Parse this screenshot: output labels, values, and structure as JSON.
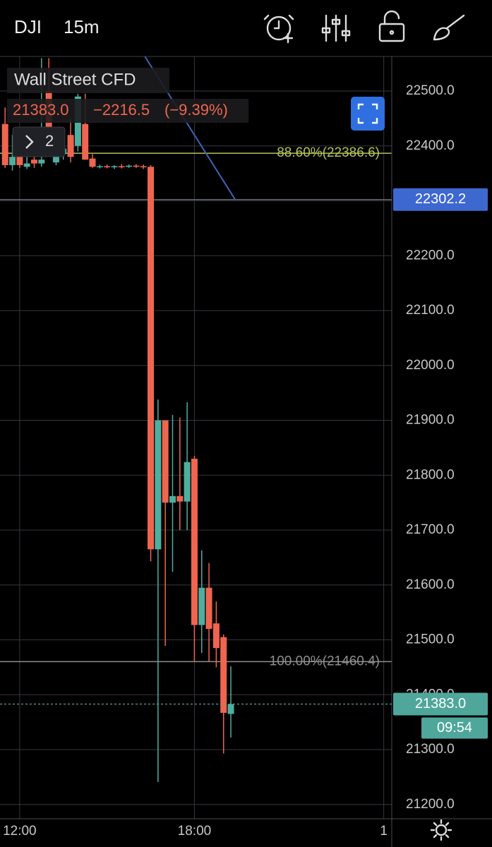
{
  "top_bar": {
    "symbol": "DJI",
    "interval": "15m"
  },
  "chart_data": {
    "type": "candlestick",
    "title": "Wall Street CFD",
    "legend": {
      "close": "21383.0",
      "change": "−2216.5",
      "change_percent": "(−9.39%)"
    },
    "indicators_button": "2",
    "x": [
      -2,
      -1,
      0,
      1,
      2,
      3,
      4,
      5,
      6,
      7,
      8,
      9,
      10,
      11,
      12,
      13,
      14,
      15,
      16,
      17,
      18,
      19,
      20,
      21,
      22,
      23,
      24,
      25,
      26,
      27,
      28,
      29
    ],
    "open": [
      22440,
      22365,
      22400,
      22362,
      22375,
      22368,
      22500,
      22370,
      22385,
      22420,
      22400,
      22440,
      22377,
      22362,
      22363,
      22362,
      22363,
      22362,
      22364,
      22363,
      22362,
      21665,
      21900,
      21750,
      21762,
      21752,
      21830,
      21527,
      21595,
      21530,
      21505,
      21365
    ],
    "high": [
      22470,
      22420,
      22430,
      22380,
      22390,
      22560,
      22560,
      22400,
      22420,
      22450,
      22495,
      22495,
      22385,
      22366,
      22366,
      22365,
      22367,
      22366,
      22367,
      22366,
      22365,
      21938,
      21900,
      21910,
      21905,
      21933,
      21835,
      21663,
      21640,
      21570,
      21510,
      21452
    ],
    "low": [
      22360,
      22355,
      22360,
      22358,
      22360,
      22362,
      22380,
      22365,
      22375,
      22370,
      22390,
      22375,
      22360,
      22359,
      22359,
      22358,
      22359,
      22360,
      22360,
      22358,
      21643,
      21241,
      21489,
      21624,
      21700,
      21700,
      21460,
      21476,
      21460,
      21450,
      21293,
      21322
    ],
    "close": [
      22365,
      22380,
      22365,
      22368,
      22368,
      22375,
      22400,
      22385,
      22395,
      22380,
      22490,
      22375,
      22362,
      22363,
      22362,
      22363,
      22362,
      22364,
      22363,
      22362,
      21665,
      21900,
      21750,
      21762,
      21752,
      21824,
      21527,
      21595,
      21520,
      21485,
      21367,
      21383
    ],
    "up_color": "#4fae9f",
    "down_color": "#f0654f",
    "xlim": [
      -2.7,
      51.1
    ],
    "xticks": [
      {
        "value": 0,
        "label": "12:00"
      },
      {
        "value": 24,
        "label": "18:00"
      },
      {
        "value": 50,
        "label": "1"
      }
    ],
    "ylim": [
      21174,
      22563
    ],
    "yticks": [
      {
        "value": 21200,
        "label": "21200.0"
      },
      {
        "value": 21300,
        "label": "21300.0"
      },
      {
        "value": 21400,
        "label": "21400.0"
      },
      {
        "value": 21500,
        "label": "21500.0"
      },
      {
        "value": 21600,
        "label": "21600.0"
      },
      {
        "value": 21700,
        "label": "21700.0"
      },
      {
        "value": 21800,
        "label": "21800.0"
      },
      {
        "value": 21900,
        "label": "21900.0"
      },
      {
        "value": 22000,
        "label": "22000.0"
      },
      {
        "value": 22100,
        "label": "22100.0"
      },
      {
        "value": 22200,
        "label": "22200.0"
      },
      {
        "value": 22300,
        "label": "22300.0"
      },
      {
        "value": 22400,
        "label": "22400.0"
      },
      {
        "value": 22500,
        "label": "22500.0"
      }
    ],
    "grid": true,
    "fib_levels": [
      {
        "label": "88.60%(22386.6)",
        "value": 22386.6,
        "color": "#b3c45c"
      },
      {
        "label": "100.00%(21460.4)",
        "value": 21460.4,
        "color": "#8f8f8f"
      }
    ],
    "horizontal_line": {
      "value": 22302.2,
      "label": "22302.2",
      "color": "#3d68d0"
    },
    "trendline": {
      "x": [
        17.2,
        29.6
      ],
      "y": [
        22563,
        22302.2
      ],
      "color": "#3f63b8"
    },
    "last_price": {
      "value": 21383.0,
      "label": "21383.0",
      "countdown": "09:54",
      "color": "#4fa79b"
    }
  }
}
